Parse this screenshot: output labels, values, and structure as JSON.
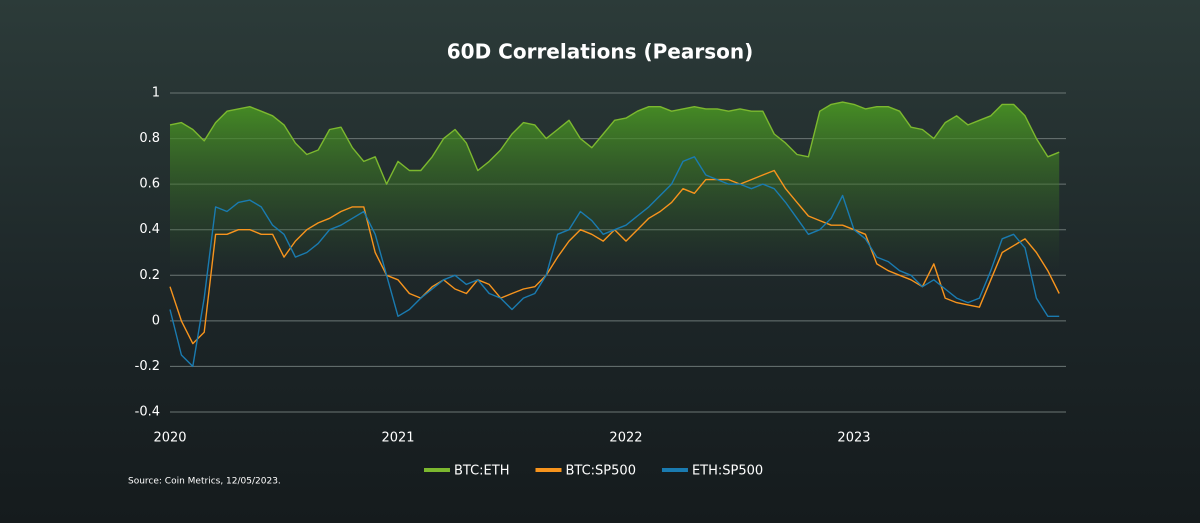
{
  "chart_data": {
    "type": "line",
    "title": "60D Correlations (Pearson)",
    "source": "Source: Coin Metrics, 12/05/2023.",
    "x": [
      2020,
      2020.05,
      2020.1,
      2020.15,
      2020.2,
      2020.25,
      2020.3,
      2020.35,
      2020.4,
      2020.45,
      2020.5,
      2020.55,
      2020.6,
      2020.65,
      2020.7,
      2020.75,
      2020.8,
      2020.85,
      2020.9,
      2020.95,
      2021,
      2021.05,
      2021.1,
      2021.15,
      2021.2,
      2021.25,
      2021.3,
      2021.35,
      2021.4,
      2021.45,
      2021.5,
      2021.55,
      2021.6,
      2021.65,
      2021.7,
      2021.75,
      2021.8,
      2021.85,
      2021.9,
      2021.95,
      2022,
      2022.05,
      2022.1,
      2022.15,
      2022.2,
      2022.25,
      2022.3,
      2022.35,
      2022.4,
      2022.45,
      2022.5,
      2022.55,
      2022.6,
      2022.65,
      2022.7,
      2022.75,
      2022.8,
      2022.85,
      2022.9,
      2022.95,
      2023,
      2023.05,
      2023.1,
      2023.15,
      2023.2,
      2023.25,
      2023.3,
      2023.35,
      2023.4,
      2023.45,
      2023.5,
      2023.55,
      2023.6,
      2023.65,
      2023.7,
      2023.75,
      2023.8,
      2023.85,
      2023.9
    ],
    "series": [
      {
        "name": "BTC:ETH",
        "color": "#7cb82f",
        "area": true,
        "values": [
          0.86,
          0.87,
          0.84,
          0.79,
          0.87,
          0.92,
          0.93,
          0.94,
          0.92,
          0.9,
          0.86,
          0.78,
          0.73,
          0.75,
          0.84,
          0.85,
          0.76,
          0.7,
          0.72,
          0.6,
          0.7,
          0.66,
          0.66,
          0.72,
          0.8,
          0.84,
          0.78,
          0.66,
          0.7,
          0.75,
          0.82,
          0.87,
          0.86,
          0.8,
          0.84,
          0.88,
          0.8,
          0.76,
          0.82,
          0.88,
          0.89,
          0.92,
          0.94,
          0.94,
          0.92,
          0.93,
          0.94,
          0.93,
          0.93,
          0.92,
          0.93,
          0.92,
          0.92,
          0.82,
          0.78,
          0.73,
          0.72,
          0.92,
          0.95,
          0.96,
          0.95,
          0.93,
          0.94,
          0.94,
          0.92,
          0.85,
          0.84,
          0.8,
          0.87,
          0.9,
          0.86,
          0.88,
          0.9,
          0.95,
          0.95,
          0.9,
          0.8,
          0.72,
          0.74
        ]
      },
      {
        "name": "BTC:SP500",
        "color": "#f7941d",
        "values": [
          0.15,
          0,
          -0.1,
          -0.05,
          0.38,
          0.38,
          0.4,
          0.4,
          0.38,
          0.38,
          0.28,
          0.35,
          0.4,
          0.43,
          0.45,
          0.48,
          0.5,
          0.5,
          0.3,
          0.2,
          0.18,
          0.12,
          0.1,
          0.15,
          0.18,
          0.14,
          0.12,
          0.18,
          0.16,
          0.1,
          0.12,
          0.14,
          0.15,
          0.2,
          0.28,
          0.35,
          0.4,
          0.38,
          0.35,
          0.4,
          0.35,
          0.4,
          0.45,
          0.48,
          0.52,
          0.58,
          0.56,
          0.62,
          0.62,
          0.62,
          0.6,
          0.62,
          0.64,
          0.66,
          0.58,
          0.52,
          0.46,
          0.44,
          0.42,
          0.42,
          0.4,
          0.38,
          0.25,
          0.22,
          0.2,
          0.18,
          0.15,
          0.25,
          0.1,
          0.08,
          0.07,
          0.06,
          0.18,
          0.3,
          0.33,
          0.36,
          0.3,
          0.22,
          0.12
        ]
      },
      {
        "name": "ETH:SP500",
        "color": "#1a7bb0",
        "values": [
          0.05,
          -0.15,
          -0.2,
          0.1,
          0.5,
          0.48,
          0.52,
          0.53,
          0.5,
          0.42,
          0.38,
          0.28,
          0.3,
          0.34,
          0.4,
          0.42,
          0.45,
          0.48,
          0.38,
          0.2,
          0.02,
          0.05,
          0.1,
          0.14,
          0.18,
          0.2,
          0.16,
          0.18,
          0.12,
          0.1,
          0.05,
          0.1,
          0.12,
          0.2,
          0.38,
          0.4,
          0.48,
          0.44,
          0.38,
          0.4,
          0.42,
          0.46,
          0.5,
          0.55,
          0.6,
          0.7,
          0.72,
          0.64,
          0.62,
          0.6,
          0.6,
          0.58,
          0.6,
          0.58,
          0.52,
          0.45,
          0.38,
          0.4,
          0.45,
          0.55,
          0.4,
          0.36,
          0.28,
          0.26,
          0.22,
          0.2,
          0.15,
          0.18,
          0.14,
          0.1,
          0.08,
          0.1,
          0.22,
          0.36,
          0.38,
          0.32,
          0.1,
          0.02,
          0.02
        ]
      }
    ],
    "xlim": [
      2020,
      2023.93
    ],
    "xticks": [
      2020,
      2021,
      2022,
      2023
    ],
    "ylim": [
      -0.4,
      1
    ],
    "yticks": [
      1,
      0.8,
      0.6,
      0.4,
      0.2,
      0,
      -0.2,
      -0.4
    ],
    "grid": true
  }
}
